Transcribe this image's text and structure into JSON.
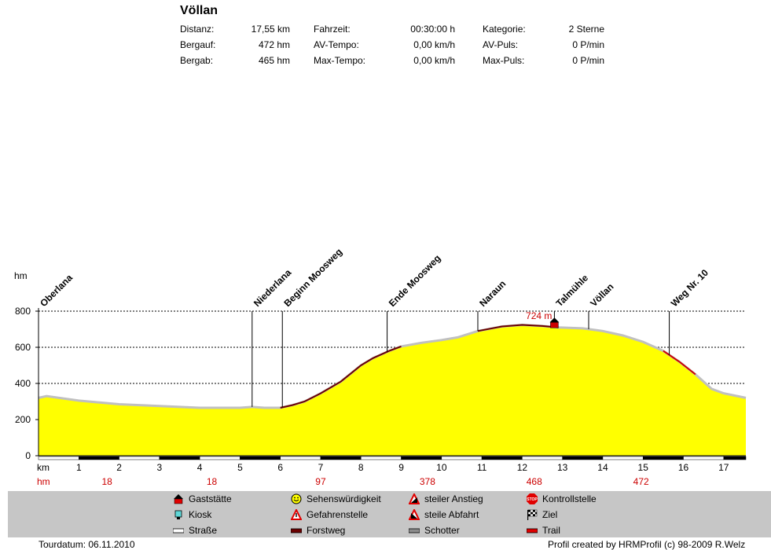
{
  "header": {
    "title": "Völlan",
    "stats": [
      {
        "label": "Distanz:",
        "value": "17,55 km"
      },
      {
        "label": "Bergauf:",
        "value": "472 hm"
      },
      {
        "label": "Bergab:",
        "value": "465 hm"
      },
      {
        "label": "Fahrzeit:",
        "value": "00:30:00 h"
      },
      {
        "label": "AV-Tempo:",
        "value": "0,00 km/h"
      },
      {
        "label": "Max-Tempo:",
        "value": "0,00 km/h"
      },
      {
        "label": "Kategorie:",
        "value": "2 Sterne"
      },
      {
        "label": "AV-Puls:",
        "value": "0 P/min"
      },
      {
        "label": "Max-Puls:",
        "value": "0 P/min"
      }
    ]
  },
  "chart_data": {
    "type": "area",
    "ylabel": "hm",
    "xlabel": "km",
    "xlim": [
      0,
      17.55
    ],
    "ylim": [
      0,
      800
    ],
    "yticks": [
      0,
      200,
      400,
      600,
      800
    ],
    "xticks": [
      1,
      2,
      3,
      4,
      5,
      6,
      7,
      8,
      9,
      10,
      11,
      12,
      13,
      14,
      15,
      16,
      17
    ],
    "grid": "horizontal-dashed",
    "series": [
      {
        "x": [
          0,
          0.2,
          1,
          2,
          3,
          4,
          5,
          5.3,
          5.6,
          6,
          6.3,
          6.6,
          7,
          7.5,
          8,
          8.3,
          8.7,
          9,
          9.5,
          10,
          10.4,
          10.9,
          11.5,
          12,
          12.5,
          12.9,
          13.5,
          14,
          14.5,
          15,
          15.5,
          15.9,
          16.3,
          16.7,
          17,
          17.55
        ],
        "y": [
          320,
          330,
          305,
          285,
          275,
          265,
          265,
          270,
          265,
          265,
          280,
          300,
          345,
          410,
          500,
          540,
          580,
          605,
          625,
          640,
          655,
          690,
          715,
          724,
          718,
          710,
          705,
          690,
          665,
          630,
          580,
          520,
          450,
          370,
          345,
          320
        ]
      }
    ],
    "peak_annotation": {
      "x": 12.8,
      "y": 724,
      "text": "724 m"
    },
    "waypoints": [
      {
        "name": "Oberlana",
        "x": 0
      },
      {
        "name": "Niederlana",
        "x": 5.3
      },
      {
        "name": "Beginn Moosweg",
        "x": 6.05
      },
      {
        "name": "Ende Moosweg",
        "x": 8.65
      },
      {
        "name": "Naraun",
        "x": 10.9
      },
      {
        "name": "Talmühle",
        "x": 12.8
      },
      {
        "name": "Völlan",
        "x": 13.65
      },
      {
        "name": "Weg Nr. 10",
        "x": 15.65
      }
    ],
    "hm_markers": [
      {
        "x": 1.7,
        "text": "18"
      },
      {
        "x": 4.3,
        "text": "18"
      },
      {
        "x": 7,
        "text": "97"
      },
      {
        "x": 9.65,
        "text": "378"
      },
      {
        "x": 12.3,
        "text": "468"
      },
      {
        "x": 14.95,
        "text": "472"
      }
    ],
    "colors": {
      "fill": "#ffff00",
      "road": "#c0c0c0",
      "forest": "#6b0000",
      "trail": "#cc0000",
      "peak": "#cc0000",
      "hm_label": "#cc0000"
    }
  },
  "legend": [
    {
      "icon": "gasthaus-icon",
      "label": "Gaststätte"
    },
    {
      "icon": "kiosk-icon",
      "label": "Kiosk"
    },
    {
      "icon": "strasse-icon",
      "label": "Straße"
    },
    {
      "icon": "smiley-icon",
      "label": "Sehenswürdigkeit"
    },
    {
      "icon": "warning-icon",
      "label": "Gefahrenstelle"
    },
    {
      "icon": "forstweg-icon",
      "label": "Forstweg"
    },
    {
      "icon": "steep-up-icon",
      "label": "steiler Anstieg"
    },
    {
      "icon": "steep-down-icon",
      "label": "steile Abfahrt"
    },
    {
      "icon": "schotter-icon",
      "label": "Schotter"
    },
    {
      "icon": "stop-icon",
      "label": "Kontrollstelle"
    },
    {
      "icon": "finish-flag-icon",
      "label": "Ziel"
    },
    {
      "icon": "trail-icon",
      "label": "Trail"
    }
  ],
  "footer": {
    "date": "Tourdatum: 06.11.2010",
    "credit": "Profil created by HRMProfil (c) 98-2009 R.Welz"
  }
}
